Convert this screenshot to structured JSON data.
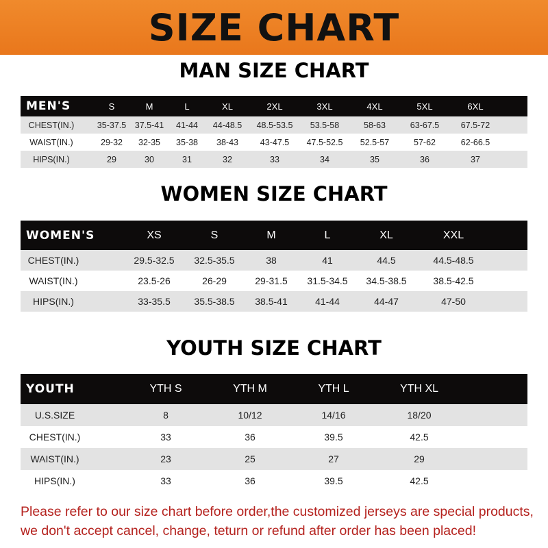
{
  "title": "SIZE CHART",
  "footer": [
    "Please refer to our size chart before order,the customized jerseys are special products,",
    "we don't accept cancel, change, teturn or refund after order has been placed!"
  ],
  "colors": {
    "banner": "#ec7f24",
    "header_row": "#0d0b0b",
    "stripe": "#e3e3e3",
    "footer_text": "#b5221e"
  },
  "tables": [
    {
      "subtitle": "MAN SIZE CHART",
      "header": [
        "MEN'S",
        "S",
        "M",
        "L",
        "XL",
        "2XL",
        "3XL",
        "4XL",
        "5XL",
        "6XL"
      ],
      "rows": [
        [
          "CHEST(IN.)",
          "35-37.5",
          "37.5-41",
          "41-44",
          "44-48.5",
          "48.5-53.5",
          "53.5-58",
          "58-63",
          "63-67.5",
          "67.5-72"
        ],
        [
          "WAIST(IN.)",
          "29-32",
          "32-35",
          "35-38",
          "38-43",
          "43-47.5",
          "47.5-52.5",
          "52.5-57",
          "57-62",
          "62-66.5"
        ],
        [
          "HIPS(IN.)",
          "29",
          "30",
          "31",
          "32",
          "33",
          "34",
          "35",
          "36",
          "37"
        ]
      ]
    },
    {
      "subtitle": "WOMEN SIZE CHART",
      "header": [
        "WOMEN'S",
        "XS",
        "S",
        "M",
        "L",
        "XL",
        "XXL"
      ],
      "rows": [
        [
          "CHEST(IN.)",
          "29.5-32.5",
          "32.5-35.5",
          "38",
          "41",
          "44.5",
          "44.5-48.5"
        ],
        [
          "WAIST(IN.)",
          "23.5-26",
          "26-29",
          "29-31.5",
          "31.5-34.5",
          "34.5-38.5",
          "38.5-42.5"
        ],
        [
          "HIPS(IN.)",
          "33-35.5",
          "35.5-38.5",
          "38.5-41",
          "41-44",
          "44-47",
          "47-50"
        ]
      ]
    },
    {
      "subtitle": "YOUTH SIZE CHART",
      "header": [
        "YOUTH",
        "YTH S",
        "YTH M",
        "YTH L",
        "YTH XL"
      ],
      "rows": [
        [
          "U.S.SIZE",
          "8",
          "10/12",
          "14/16",
          "18/20"
        ],
        [
          "CHEST(IN.)",
          "33",
          "36",
          "39.5",
          "42.5"
        ],
        [
          "WAIST(IN.)",
          "23",
          "25",
          "27",
          "29"
        ],
        [
          "HIPS(IN.)",
          "33",
          "36",
          "39.5",
          "42.5"
        ]
      ]
    }
  ]
}
